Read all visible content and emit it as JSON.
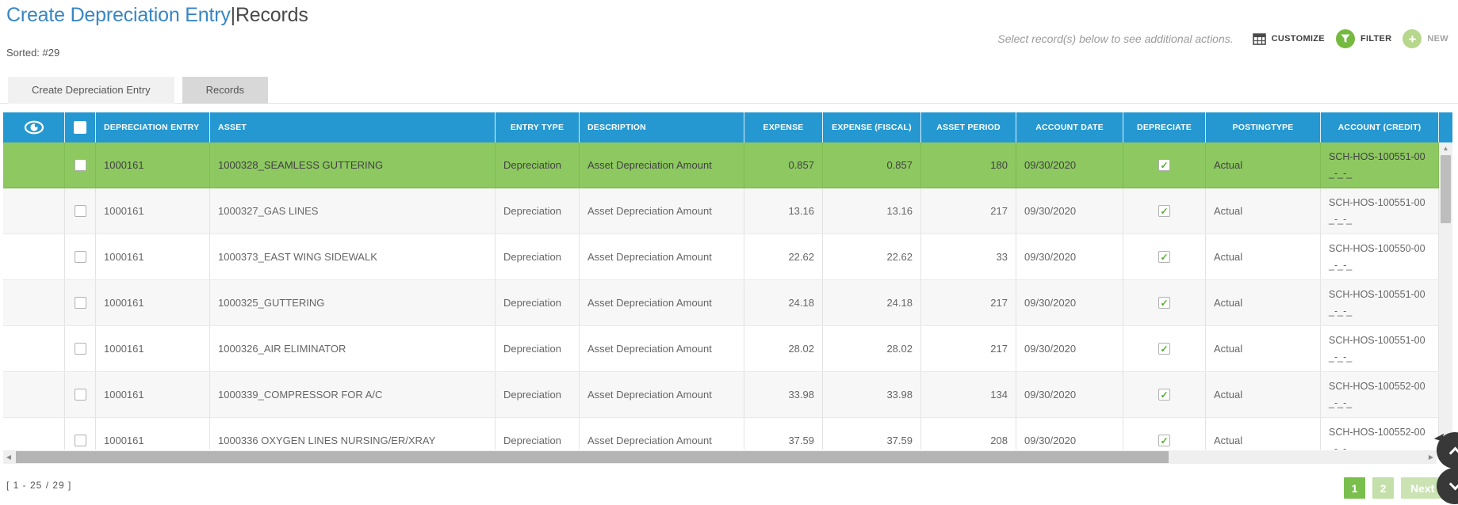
{
  "page": {
    "title_primary": "Create Depreciation Entry",
    "title_separator": "|",
    "title_secondary": "Records",
    "sorted_label": "Sorted: #29",
    "hint": "Select record(s) below to see additional actions.",
    "actions": {
      "customize": "CUSTOMIZE",
      "filter": "FILTER",
      "new": "NEW"
    }
  },
  "tabs": [
    {
      "label": "Create Depreciation Entry",
      "active": false
    },
    {
      "label": "Records",
      "active": true
    }
  ],
  "colors": {
    "header_blue": "#2598d2",
    "highlight_green": "#8dc861",
    "filter_green": "#76b93f",
    "new_green": "#b7d78c",
    "title_blue": "#3886c5"
  },
  "table": {
    "columns": [
      "",
      "",
      "DEPRECIATION ENTRY",
      "ASSET",
      "ENTRY TYPE",
      "DESCRIPTION",
      "EXPENSE",
      "EXPENSE (FISCAL)",
      "ASSET PERIOD",
      "ACCOUNT DATE",
      "DEPRECIATE",
      "POSTINGTYPE",
      "ACCOUNT (CREDIT)"
    ],
    "rows": [
      {
        "highlighted": true,
        "selected": false,
        "depreciation_entry": "1000161",
        "asset": "1000328_SEAMLESS GUTTERING",
        "entry_type": "Depreciation",
        "description": "Asset Depreciation Amount",
        "expense": "0.857",
        "expense_fiscal": "0.857",
        "asset_period": "180",
        "account_date": "09/30/2020",
        "depreciate": true,
        "posting_type": "Actual",
        "account_credit": "SCH-HOS-100551-00",
        "account_credit_line2": "_-_-_"
      },
      {
        "highlighted": false,
        "selected": false,
        "depreciation_entry": "1000161",
        "asset": "1000327_GAS LINES",
        "entry_type": "Depreciation",
        "description": "Asset Depreciation Amount",
        "expense": "13.16",
        "expense_fiscal": "13.16",
        "asset_period": "217",
        "account_date": "09/30/2020",
        "depreciate": true,
        "posting_type": "Actual",
        "account_credit": "SCH-HOS-100551-00",
        "account_credit_line2": "_-_-_"
      },
      {
        "highlighted": false,
        "selected": false,
        "depreciation_entry": "1000161",
        "asset": "1000373_EAST WING SIDEWALK",
        "entry_type": "Depreciation",
        "description": "Asset Depreciation Amount",
        "expense": "22.62",
        "expense_fiscal": "22.62",
        "asset_period": "33",
        "account_date": "09/30/2020",
        "depreciate": true,
        "posting_type": "Actual",
        "account_credit": "SCH-HOS-100550-00",
        "account_credit_line2": "_-_-_"
      },
      {
        "highlighted": false,
        "selected": false,
        "depreciation_entry": "1000161",
        "asset": "1000325_GUTTERING",
        "entry_type": "Depreciation",
        "description": "Asset Depreciation Amount",
        "expense": "24.18",
        "expense_fiscal": "24.18",
        "asset_period": "217",
        "account_date": "09/30/2020",
        "depreciate": true,
        "posting_type": "Actual",
        "account_credit": "SCH-HOS-100551-00",
        "account_credit_line2": "_-_-_"
      },
      {
        "highlighted": false,
        "selected": false,
        "depreciation_entry": "1000161",
        "asset": "1000326_AIR ELIMINATOR",
        "entry_type": "Depreciation",
        "description": "Asset Depreciation Amount",
        "expense": "28.02",
        "expense_fiscal": "28.02",
        "asset_period": "217",
        "account_date": "09/30/2020",
        "depreciate": true,
        "posting_type": "Actual",
        "account_credit": "SCH-HOS-100551-00",
        "account_credit_line2": "_-_-_"
      },
      {
        "highlighted": false,
        "selected": false,
        "depreciation_entry": "1000161",
        "asset": "1000339_COMPRESSOR FOR A/C",
        "entry_type": "Depreciation",
        "description": "Asset Depreciation Amount",
        "expense": "33.98",
        "expense_fiscal": "33.98",
        "asset_period": "134",
        "account_date": "09/30/2020",
        "depreciate": true,
        "posting_type": "Actual",
        "account_credit": "SCH-HOS-100552-00",
        "account_credit_line2": "_-_-_"
      },
      {
        "highlighted": false,
        "selected": false,
        "depreciation_entry": "1000161",
        "asset": "1000336 OXYGEN LINES NURSING/ER/XRAY",
        "entry_type": "Depreciation",
        "description": "Asset Depreciation Amount",
        "expense": "37.59",
        "expense_fiscal": "37.59",
        "asset_period": "208",
        "account_date": "09/30/2020",
        "depreciate": true,
        "posting_type": "Actual",
        "account_credit": "SCH-HOS-100552-00",
        "account_credit_line2": "_-_-_"
      }
    ]
  },
  "footer": {
    "range": "[ 1 - 25 / 29 ]",
    "pages": [
      {
        "label": "1",
        "current": true
      },
      {
        "label": "2",
        "current": false
      }
    ],
    "next_label": "Next"
  }
}
